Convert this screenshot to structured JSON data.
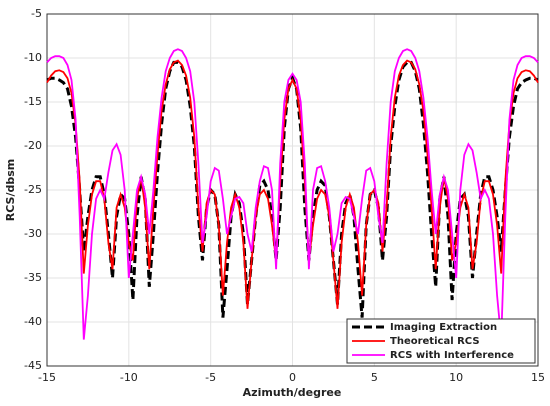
{
  "chart_data": {
    "type": "line",
    "x_label": "Azimuth/degree",
    "y_label": "RCS/dbsm",
    "xlim": [
      -15,
      15
    ],
    "xticks": [
      -15,
      -10,
      -5,
      0,
      5,
      10,
      15
    ],
    "ylim": [
      -45,
      -5
    ],
    "yticks": [
      -45,
      -40,
      -35,
      -30,
      -25,
      -20,
      -15,
      -10,
      -5
    ],
    "grid": true,
    "legend": "lower right",
    "x": [
      -15,
      -14.75,
      -14.5,
      -14.25,
      -14,
      -13.75,
      -13.5,
      -13.25,
      -13,
      -12.75,
      -12.5,
      -12.25,
      -12,
      -11.75,
      -11.5,
      -11.25,
      -11,
      -10.75,
      -10.5,
      -10.25,
      -10,
      -9.75,
      -9.5,
      -9.25,
      -9,
      -8.75,
      -8.5,
      -8.25,
      -8,
      -7.75,
      -7.5,
      -7.25,
      -7,
      -6.75,
      -6.5,
      -6.25,
      -6,
      -5.75,
      -5.5,
      -5.25,
      -5,
      -4.75,
      -4.5,
      -4.25,
      -4,
      -3.75,
      -3.5,
      -3.25,
      -3,
      -2.75,
      -2.5,
      -2.25,
      -2,
      -1.75,
      -1.5,
      -1.25,
      -1,
      -0.75,
      -0.5,
      -0.25,
      0,
      0.25,
      0.5,
      0.75,
      1,
      1.25,
      1.5,
      1.75,
      2,
      2.25,
      2.5,
      2.75,
      3,
      3.25,
      3.5,
      3.75,
      4,
      4.25,
      4.5,
      4.75,
      5,
      5.25,
      5.5,
      5.75,
      6,
      6.25,
      6.5,
      6.75,
      7,
      7.25,
      7.5,
      7.75,
      8,
      8.25,
      8.5,
      8.75,
      9,
      9.25,
      9.5,
      9.75,
      10,
      10.25,
      10.5,
      10.75,
      11,
      11.25,
      11.5,
      11.75,
      12,
      12.25,
      12.5,
      12.75,
      13,
      13.25,
      13.5,
      13.75,
      14,
      14.25,
      14.5,
      14.75,
      15
    ],
    "series": [
      {
        "name": "Imaging Extraction",
        "color": "#000000",
        "dashed": true,
        "values": [
          -12.5,
          -12.3,
          -12.3,
          -12.5,
          -12.8,
          -13.5,
          -15.5,
          -19,
          -25,
          -32,
          -28,
          -25,
          -23.5,
          -23.5,
          -25.5,
          -30,
          -35,
          -28,
          -25.5,
          -26,
          -30,
          -37.5,
          -28,
          -23.5,
          -26,
          -36,
          -30,
          -23,
          -17.5,
          -13.5,
          -11.5,
          -10.5,
          -10.5,
          -11,
          -12.5,
          -15.5,
          -20,
          -28,
          -33,
          -27,
          -25,
          -25.5,
          -29,
          -39.5,
          -34,
          -28,
          -25.5,
          -26.5,
          -30,
          -38,
          -33,
          -28,
          -24.5,
          -24,
          -25,
          -28,
          -33,
          -27,
          -18,
          -13.5,
          -12.3,
          -13.5,
          -18,
          -27,
          -33,
          -28,
          -25,
          -24,
          -24.5,
          -28,
          -33,
          -38,
          -30,
          -26.5,
          -25.5,
          -28,
          -34,
          -39.5,
          -29,
          -25.5,
          -25,
          -27,
          -33,
          -28,
          -20,
          -15.5,
          -12.5,
          -11,
          -10.5,
          -10.5,
          -11.5,
          -13.5,
          -17.5,
          -23,
          -30,
          -36,
          -26,
          -23.5,
          -28,
          -37.5,
          -30,
          -26,
          -25.5,
          -28,
          -35,
          -30,
          -25.5,
          -23.5,
          -23.5,
          -25,
          -28,
          -32,
          -25,
          -19,
          -15.5,
          -13.5,
          -12.8,
          -12.5,
          -12.3,
          -12.3,
          -12.5
        ]
      },
      {
        "name": "Theoretical RCS",
        "color": "#ff0000",
        "dashed": false,
        "values": [
          -12.8,
          -12,
          -11.5,
          -11.4,
          -11.6,
          -12.3,
          -14,
          -17.5,
          -24,
          -34.5,
          -29,
          -25.5,
          -24,
          -24,
          -26,
          -31,
          -34,
          -27,
          -25.5,
          -27,
          -31,
          -33,
          -26,
          -23.5,
          -27,
          -34,
          -27,
          -21,
          -16,
          -13,
          -11.3,
          -10.5,
          -10.3,
          -10.8,
          -12,
          -14.5,
          -19,
          -27,
          -32,
          -26.5,
          -25,
          -25.5,
          -29,
          -37,
          -31,
          -27,
          -25.5,
          -27,
          -31,
          -38.5,
          -33,
          -28,
          -25.5,
          -25,
          -26,
          -29,
          -33,
          -24,
          -17,
          -13.5,
          -12.5,
          -13.5,
          -17,
          -24,
          -33,
          -29,
          -26,
          -25,
          -25.5,
          -28,
          -33,
          -38.5,
          -31,
          -27,
          -25.5,
          -27,
          -31,
          -37,
          -29,
          -25.5,
          -25,
          -26.5,
          -32,
          -27,
          -19,
          -14.5,
          -12,
          -10.8,
          -10.3,
          -10.5,
          -11.3,
          -13,
          -16,
          -21,
          -27,
          -34,
          -27,
          -23.5,
          -26,
          -33,
          -31,
          -27,
          -25.5,
          -27,
          -34,
          -31,
          -26,
          -24,
          -24,
          -25.5,
          -29,
          -34.5,
          -24,
          -17.5,
          -14,
          -12.3,
          -11.6,
          -11.4,
          -11.5,
          -12,
          -12.8
        ]
      },
      {
        "name": "RCS with Interference",
        "color": "#ff00ff",
        "dashed": false,
        "values": [
          -10.5,
          -10,
          -9.8,
          -9.8,
          -10,
          -10.8,
          -12.5,
          -17,
          -28,
          -42,
          -37,
          -30,
          -26,
          -25,
          -26,
          -23,
          -20.5,
          -19.8,
          -21,
          -25,
          -35,
          -30,
          -25,
          -23.5,
          -25.5,
          -30,
          -25,
          -19,
          -14.5,
          -11.5,
          -10,
          -9.2,
          -9,
          -9.2,
          -10,
          -11.5,
          -15,
          -22,
          -31,
          -28,
          -24,
          -22.5,
          -22.8,
          -26,
          -30,
          -28,
          -26,
          -25.8,
          -26.5,
          -30,
          -32,
          -27,
          -24,
          -22.3,
          -22.5,
          -25,
          -34,
          -22,
          -15,
          -12.5,
          -11.8,
          -12.5,
          -15,
          -22,
          -34,
          -25,
          -22.5,
          -22.3,
          -24,
          -27,
          -32,
          -30,
          -26.5,
          -25.8,
          -26,
          -28,
          -30,
          -26,
          -22.8,
          -22.5,
          -24,
          -28,
          -31,
          -22,
          -15,
          -11.5,
          -10,
          -9.2,
          -9,
          -9.2,
          -10,
          -11.5,
          -14.5,
          -19,
          -25,
          -30,
          -25.5,
          -23.5,
          -25,
          -30,
          -35,
          -25,
          -21,
          -19.8,
          -20.5,
          -23,
          -26,
          -25,
          -26,
          -30,
          -37,
          -42,
          -28,
          -17,
          -12.5,
          -10.8,
          -10,
          -9.8,
          -9.8,
          -10,
          -10.5
        ]
      }
    ]
  }
}
